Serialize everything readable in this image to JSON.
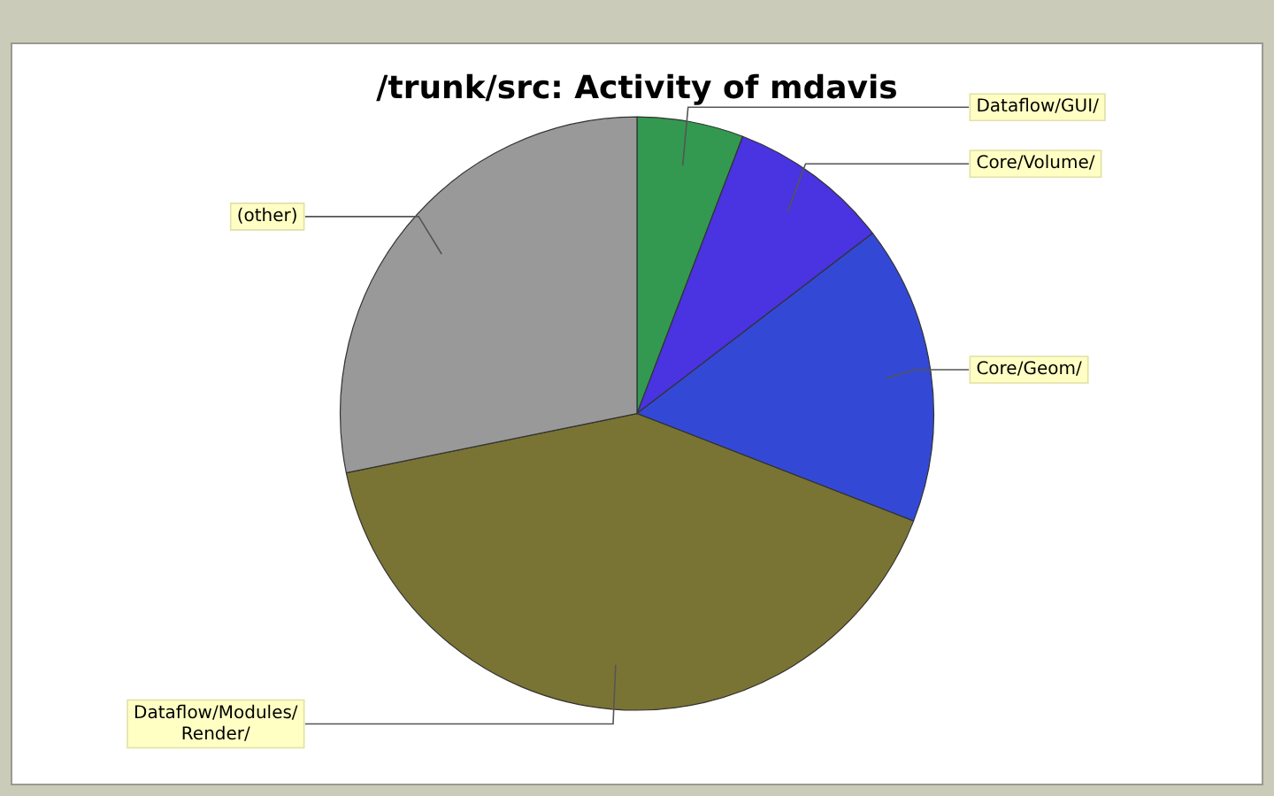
{
  "chart_data": {
    "type": "pie",
    "title": "/trunk/src: Activity of mdavis",
    "categories": [
      "Dataflow/GUI/",
      "Core/Volume/",
      "Core/Geom/",
      "Dataflow/Modules/Render/",
      "(other)"
    ],
    "values": [
      5.8,
      8.8,
      16.3,
      40.9,
      28.2
    ],
    "colors": [
      "#339950",
      "#4a33e0",
      "#3349d6",
      "#7a7434",
      "#999999"
    ],
    "legend": false
  }
}
